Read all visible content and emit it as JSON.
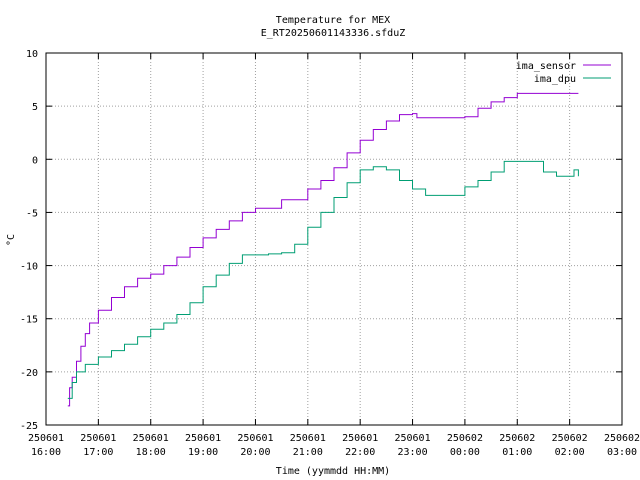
{
  "chart_data": {
    "type": "line",
    "title": "Temperature for MEX",
    "subtitle": "E_RT20250601143336.sfduZ",
    "xlabel": "Time (yymmdd HH:MM)",
    "ylabel": "°C",
    "ylim": [
      -25,
      10
    ],
    "yticks": [
      -25,
      -20,
      -15,
      -10,
      -5,
      0,
      5,
      10
    ],
    "xlim": [
      "2025-06-01 16:00",
      "2025-06-02 03:00"
    ],
    "xticks": [
      {
        "date": "250601",
        "time": "16:00"
      },
      {
        "date": "250601",
        "time": "17:00"
      },
      {
        "date": "250601",
        "time": "18:00"
      },
      {
        "date": "250601",
        "time": "19:00"
      },
      {
        "date": "250601",
        "time": "20:00"
      },
      {
        "date": "250601",
        "time": "21:00"
      },
      {
        "date": "250601",
        "time": "22:00"
      },
      {
        "date": "250601",
        "time": "23:00"
      },
      {
        "date": "250602",
        "time": "00:00"
      },
      {
        "date": "250602",
        "time": "01:00"
      },
      {
        "date": "250602",
        "time": "02:00"
      },
      {
        "date": "250602",
        "time": "03:00"
      }
    ],
    "grid": true,
    "legend_position": "top-right",
    "series": [
      {
        "name": "ima_sensor",
        "color": "#9400d3",
        "points": [
          [
            "2025-06-01 16:25",
            -23.2
          ],
          [
            "2025-06-01 16:27",
            -21.5
          ],
          [
            "2025-06-01 16:30",
            -20.5
          ],
          [
            "2025-06-01 16:35",
            -19.0
          ],
          [
            "2025-06-01 16:40",
            -17.6
          ],
          [
            "2025-06-01 16:45",
            -16.4
          ],
          [
            "2025-06-01 16:50",
            -15.4
          ],
          [
            "2025-06-01 17:00",
            -14.2
          ],
          [
            "2025-06-01 17:15",
            -13.0
          ],
          [
            "2025-06-01 17:30",
            -12.0
          ],
          [
            "2025-06-01 17:45",
            -11.2
          ],
          [
            "2025-06-01 18:00",
            -10.8
          ],
          [
            "2025-06-01 18:15",
            -10.0
          ],
          [
            "2025-06-01 18:30",
            -9.2
          ],
          [
            "2025-06-01 18:45",
            -8.3
          ],
          [
            "2025-06-01 19:00",
            -7.4
          ],
          [
            "2025-06-01 19:15",
            -6.6
          ],
          [
            "2025-06-01 19:30",
            -5.8
          ],
          [
            "2025-06-01 19:45",
            -5.0
          ],
          [
            "2025-06-01 20:00",
            -4.6
          ],
          [
            "2025-06-01 20:30",
            -3.8
          ],
          [
            "2025-06-01 21:00",
            -2.8
          ],
          [
            "2025-06-01 21:15",
            -2.0
          ],
          [
            "2025-06-01 21:30",
            -0.8
          ],
          [
            "2025-06-01 21:45",
            0.6
          ],
          [
            "2025-06-01 22:00",
            1.8
          ],
          [
            "2025-06-01 22:15",
            2.8
          ],
          [
            "2025-06-01 22:30",
            3.6
          ],
          [
            "2025-06-01 22:45",
            4.2
          ],
          [
            "2025-06-01 23:00",
            4.3
          ],
          [
            "2025-06-01 23:05",
            3.9
          ],
          [
            "2025-06-01 23:30",
            3.9
          ],
          [
            "2025-06-02 00:00",
            4.0
          ],
          [
            "2025-06-02 00:15",
            4.8
          ],
          [
            "2025-06-02 00:30",
            5.4
          ],
          [
            "2025-06-02 00:45",
            5.8
          ],
          [
            "2025-06-02 01:00",
            6.2
          ],
          [
            "2025-06-02 01:30",
            6.2
          ],
          [
            "2025-06-02 02:00",
            6.2
          ],
          [
            "2025-06-02 02:10",
            6.2
          ]
        ]
      },
      {
        "name": "ima_dpu",
        "color": "#009e73",
        "points": [
          [
            "2025-06-01 16:25",
            -22.5
          ],
          [
            "2025-06-01 16:30",
            -21.0
          ],
          [
            "2025-06-01 16:35",
            -20.0
          ],
          [
            "2025-06-01 16:45",
            -19.3
          ],
          [
            "2025-06-01 17:00",
            -18.6
          ],
          [
            "2025-06-01 17:15",
            -18.0
          ],
          [
            "2025-06-01 17:30",
            -17.4
          ],
          [
            "2025-06-01 17:45",
            -16.7
          ],
          [
            "2025-06-01 18:00",
            -16.0
          ],
          [
            "2025-06-01 18:15",
            -15.4
          ],
          [
            "2025-06-01 18:30",
            -14.6
          ],
          [
            "2025-06-01 18:45",
            -13.5
          ],
          [
            "2025-06-01 19:00",
            -12.0
          ],
          [
            "2025-06-01 19:15",
            -10.9
          ],
          [
            "2025-06-01 19:30",
            -9.8
          ],
          [
            "2025-06-01 19:45",
            -9.0
          ],
          [
            "2025-06-01 20:00",
            -9.0
          ],
          [
            "2025-06-01 20:15",
            -8.9
          ],
          [
            "2025-06-01 20:30",
            -8.8
          ],
          [
            "2025-06-01 20:45",
            -8.0
          ],
          [
            "2025-06-01 21:00",
            -6.4
          ],
          [
            "2025-06-01 21:15",
            -5.0
          ],
          [
            "2025-06-01 21:30",
            -3.6
          ],
          [
            "2025-06-01 21:45",
            -2.2
          ],
          [
            "2025-06-01 22:00",
            -1.0
          ],
          [
            "2025-06-01 22:15",
            -0.7
          ],
          [
            "2025-06-01 22:30",
            -1.0
          ],
          [
            "2025-06-01 22:45",
            -2.0
          ],
          [
            "2025-06-01 23:00",
            -2.8
          ],
          [
            "2025-06-01 23:15",
            -3.4
          ],
          [
            "2025-06-01 23:45",
            -3.4
          ],
          [
            "2025-06-02 00:00",
            -2.6
          ],
          [
            "2025-06-02 00:15",
            -2.0
          ],
          [
            "2025-06-02 00:30",
            -1.2
          ],
          [
            "2025-06-02 00:45",
            -0.2
          ],
          [
            "2025-06-02 01:15",
            -0.2
          ],
          [
            "2025-06-02 01:30",
            -1.2
          ],
          [
            "2025-06-02 01:45",
            -1.6
          ],
          [
            "2025-06-02 02:00",
            -1.6
          ],
          [
            "2025-06-02 02:05",
            -1.0
          ],
          [
            "2025-06-02 02:10",
            -1.6
          ]
        ]
      }
    ]
  }
}
